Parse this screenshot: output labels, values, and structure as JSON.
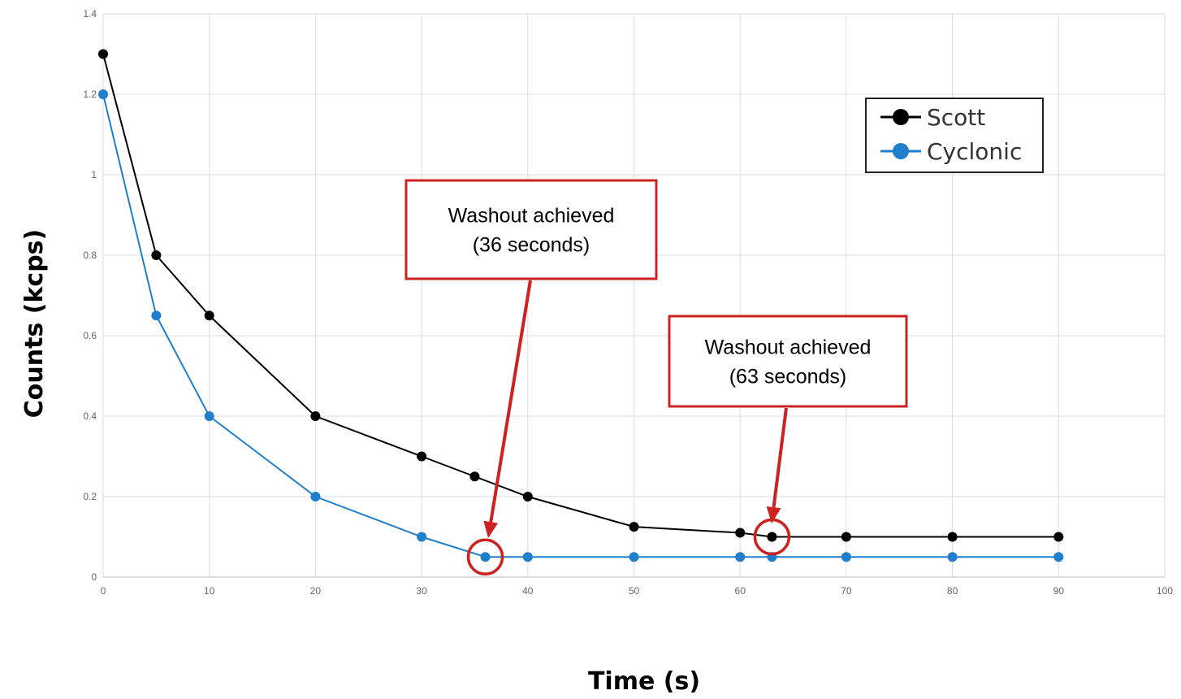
{
  "chart_data": {
    "type": "line",
    "title": "",
    "xlabel": "Time (s)",
    "ylabel": "Counts (kcps)",
    "xlim": [
      0,
      100
    ],
    "ylim": [
      0,
      1.4
    ],
    "x_ticks": [
      "0",
      "10",
      "20",
      "30",
      "40",
      "50",
      "60",
      "70",
      "80",
      "90",
      "100"
    ],
    "y_ticks": [
      "0",
      "0.2",
      "0.4",
      "0.6",
      "0.8",
      "1",
      "1.2",
      "1.4"
    ],
    "grid": true,
    "legend_position": "top-right",
    "series": [
      {
        "name": "Scott",
        "color": "#000000",
        "x": [
          0,
          5,
          10,
          20,
          30,
          35,
          40,
          50,
          60,
          63,
          70,
          80,
          90
        ],
        "y": [
          1.3,
          0.8,
          0.65,
          0.4,
          0.3,
          0.25,
          0.2,
          0.125,
          0.11,
          0.1,
          0.1,
          0.1,
          0.1
        ]
      },
      {
        "name": "Cyclonic",
        "color": "#1f7fcc",
        "x": [
          0,
          5,
          10,
          20,
          30,
          36,
          40,
          50,
          60,
          63,
          70,
          80,
          90
        ],
        "y": [
          1.2,
          0.65,
          0.4,
          0.2,
          0.1,
          0.05,
          0.05,
          0.05,
          0.05,
          0.05,
          0.05,
          0.05,
          0.05
        ]
      }
    ],
    "annotations": [
      {
        "line1": "Washout achieved",
        "line2": "(36 seconds)",
        "x": 36,
        "y": 0.05,
        "color": "#cc2222"
      },
      {
        "line1": "Washout achieved",
        "line2": "(63 seconds)",
        "x": 63,
        "y": 0.1,
        "color": "#cc2222"
      }
    ]
  }
}
